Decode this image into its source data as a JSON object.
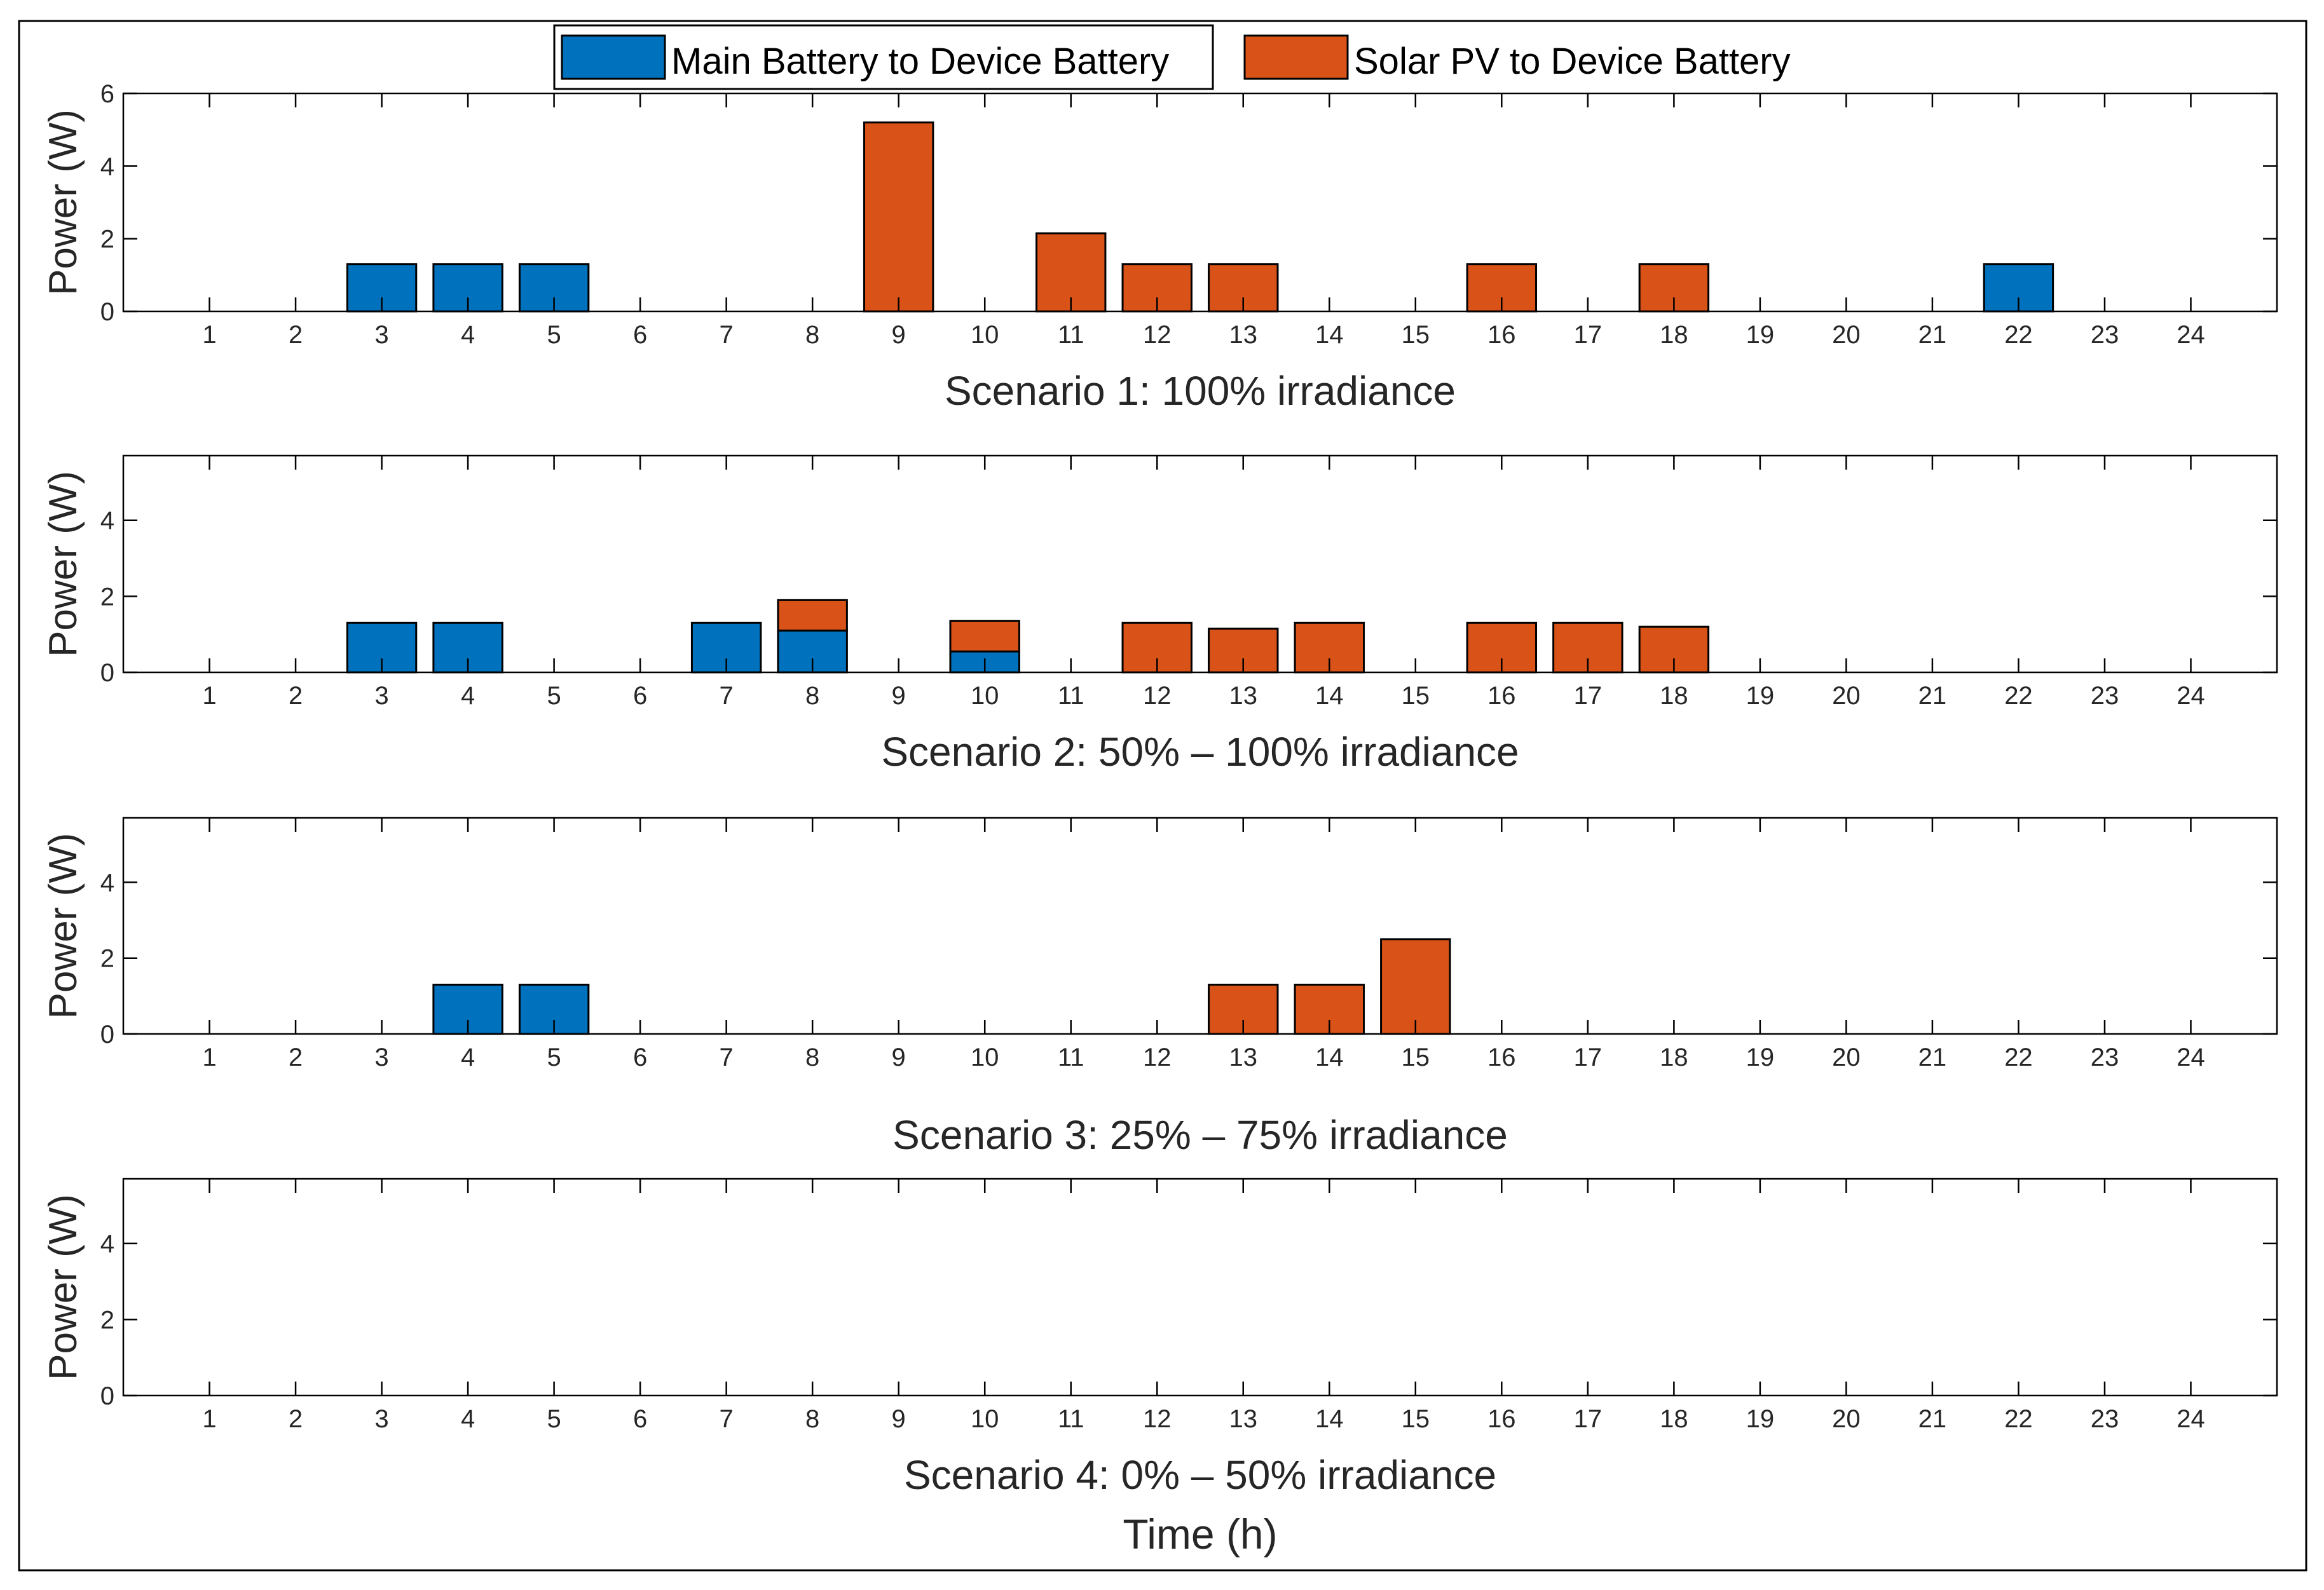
{
  "chart_data": {
    "type": "bar",
    "stacked": true,
    "x": [
      1,
      2,
      3,
      4,
      5,
      6,
      7,
      8,
      9,
      10,
      11,
      12,
      13,
      14,
      15,
      16,
      17,
      18,
      19,
      20,
      21,
      22,
      23,
      24
    ],
    "xlabel": "Time (h)",
    "ylabel": "Power (W)",
    "legend": {
      "placement": "top-center",
      "entries": [
        {
          "name": "Main Battery to Device Battery",
          "color": "#0072BD"
        },
        {
          "name": "Solar PV to Device Battery",
          "color": "#D95319"
        }
      ]
    },
    "panels": [
      {
        "title": "Scenario 1: 100% irradiance",
        "ylim": [
          0,
          6
        ],
        "yticks": [
          0,
          2,
          4,
          6
        ],
        "series": [
          {
            "name": "Main Battery to Device Battery",
            "values": [
              0,
              0,
              1.3,
              1.3,
              1.3,
              0,
              0,
              0,
              0,
              0,
              0,
              0,
              0,
              0,
              0,
              0,
              0,
              0,
              0,
              0,
              0,
              1.3,
              0,
              0
            ]
          },
          {
            "name": "Solar PV to Device Battery",
            "values": [
              0,
              0,
              0,
              0,
              0,
              0,
              0,
              0,
              5.2,
              0,
              2.15,
              1.3,
              1.3,
              0,
              0,
              1.3,
              0,
              1.3,
              0,
              0,
              0,
              0,
              0,
              0
            ]
          }
        ]
      },
      {
        "title": "Scenario 2: 50% – 100% irradiance",
        "ylim": [
          0,
          5.7
        ],
        "yticks": [
          0,
          2,
          4
        ],
        "series": [
          {
            "name": "Main Battery to Device Battery",
            "values": [
              0,
              0,
              1.3,
              1.3,
              0,
              0,
              1.3,
              1.1,
              0,
              0.55,
              0,
              0,
              0,
              0,
              0,
              0,
              0,
              0,
              0,
              0,
              0,
              0,
              0,
              0
            ]
          },
          {
            "name": "Solar PV to Device Battery",
            "values": [
              0,
              0,
              0,
              0,
              0,
              0,
              0,
              0.8,
              0,
              0.8,
              0,
              1.3,
              1.15,
              1.3,
              0,
              1.3,
              1.3,
              1.2,
              0,
              0,
              0,
              0,
              0,
              0
            ]
          }
        ]
      },
      {
        "title": "Scenario 3: 25% – 75% irradiance",
        "ylim": [
          0,
          5.7
        ],
        "yticks": [
          0,
          2,
          4
        ],
        "series": [
          {
            "name": "Main Battery to Device Battery",
            "values": [
              0,
              0,
              0,
              1.3,
              1.3,
              0,
              0,
              0,
              0,
              0,
              0,
              0,
              0,
              0,
              0,
              0,
              0,
              0,
              0,
              0,
              0,
              0,
              0,
              0
            ]
          },
          {
            "name": "Solar PV to Device Battery",
            "values": [
              0,
              0,
              0,
              0,
              0,
              0,
              0,
              0,
              0,
              0,
              0,
              0,
              1.3,
              1.3,
              2.5,
              0,
              0,
              0,
              0,
              0,
              0,
              0,
              0,
              0
            ]
          }
        ]
      },
      {
        "title": "Scenario 4: 0% – 50% irradiance",
        "ylim": [
          0,
          5.7
        ],
        "yticks": [
          0,
          2,
          4
        ],
        "series": [
          {
            "name": "Main Battery to Device Battery",
            "values": [
              0,
              0,
              0,
              0,
              0,
              0,
              0,
              0,
              0,
              0,
              0,
              0,
              0,
              0,
              0,
              0,
              0,
              0,
              0,
              0,
              0,
              0,
              0,
              0
            ]
          },
          {
            "name": "Solar PV to Device Battery",
            "values": [
              0,
              0,
              0,
              0,
              0,
              0,
              0,
              0,
              0,
              0,
              0,
              0,
              0,
              0,
              0,
              0,
              0,
              0,
              0,
              0,
              0,
              0,
              0,
              0
            ]
          }
        ]
      }
    ]
  }
}
